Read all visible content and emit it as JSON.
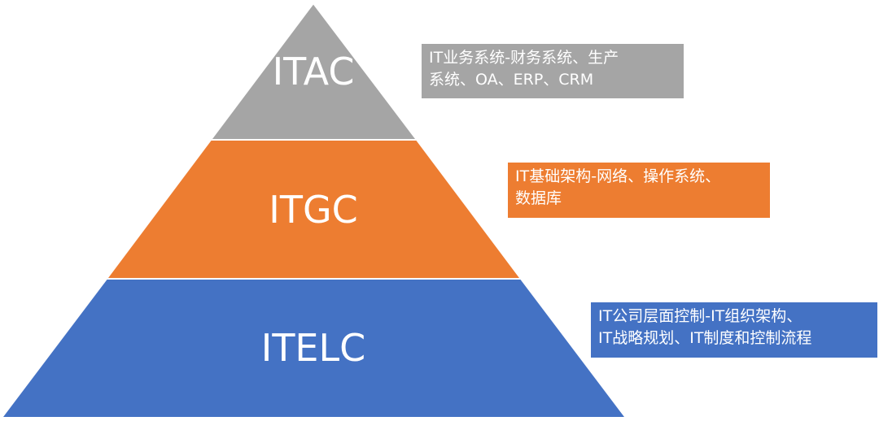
{
  "tiers": [
    {
      "id": "itac",
      "label": "ITAC",
      "color": "#a5a5a5",
      "description_lines": [
        "IT业务系统-财务系统、生产",
        "系统、OA、ERP、CRM"
      ]
    },
    {
      "id": "itgc",
      "label": "ITGC",
      "color": "#ed7d31",
      "description_lines": [
        "IT基础架构-网络、操作系统、",
        "数据库"
      ]
    },
    {
      "id": "itelc",
      "label": "ITELC",
      "color": "#4472c4",
      "description_lines": [
        "IT公司层面控制-IT组织架构、",
        "IT战略规划、IT制度和控制流程"
      ]
    }
  ]
}
